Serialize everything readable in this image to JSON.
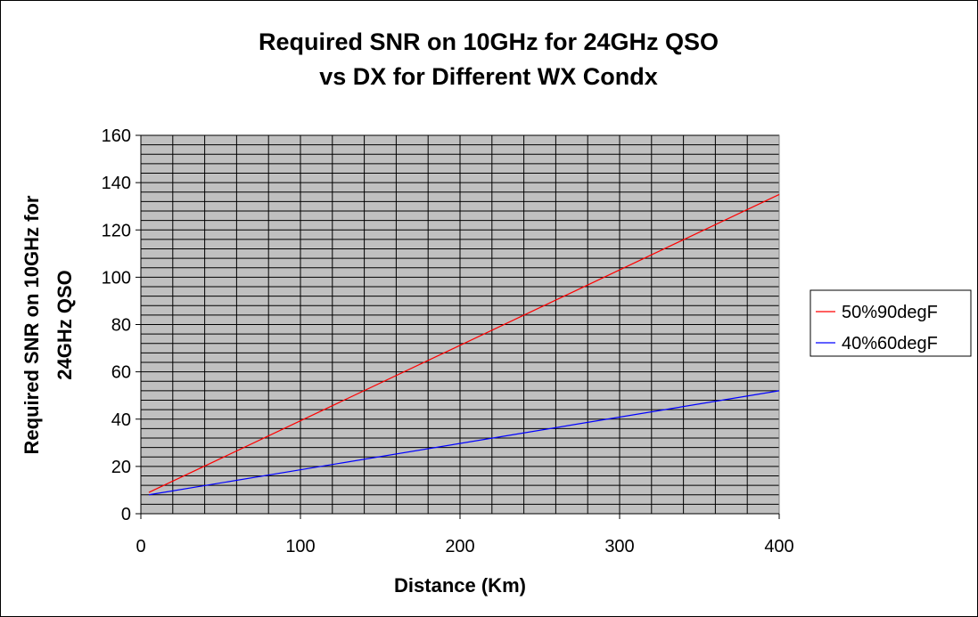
{
  "chart_data": {
    "type": "line",
    "title_lines": [
      "Required SNR on 10GHz for 24GHz QSO",
      "vs DX for Different WX Condx"
    ],
    "xlabel": "Distance (Km)",
    "ylabel_lines": [
      "Required SNR on 10GHz for",
      "24GHz QSO"
    ],
    "xlim": [
      0,
      400
    ],
    "ylim": [
      0,
      160
    ],
    "x_ticks": [
      "0",
      "100",
      "200",
      "300",
      "400"
    ],
    "y_ticks": [
      "0",
      "20",
      "40",
      "60",
      "80",
      "100",
      "120",
      "140",
      "160"
    ],
    "x_grid_step": 20,
    "y_grid_step": 4,
    "plot_background": "#c0c0c0",
    "legend_position": "right",
    "series": [
      {
        "name": "50%90degF",
        "color": "#ff0000",
        "x": [
          5,
          400
        ],
        "y": [
          9,
          135
        ]
      },
      {
        "name": "40%60degF",
        "color": "#0000ff",
        "x": [
          5,
          400
        ],
        "y": [
          8,
          52
        ]
      }
    ]
  }
}
